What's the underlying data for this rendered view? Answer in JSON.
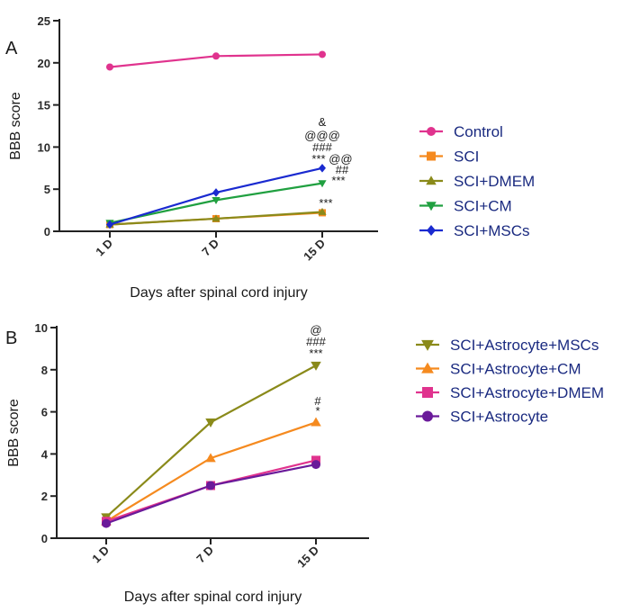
{
  "chart_data": [
    {
      "panel": "A",
      "type": "line",
      "xlabel": "Days after spinal cord injury",
      "ylabel": "BBB score",
      "ylim": [
        0,
        25
      ],
      "yticks": [
        0,
        5,
        10,
        15,
        20,
        25
      ],
      "categories": [
        "1 D",
        "7 D",
        "15 D"
      ],
      "legend_position": "right",
      "series": [
        {
          "name": "Control",
          "marker": "circle",
          "color": "#e0338e",
          "values": [
            19.5,
            20.8,
            21.0
          ]
        },
        {
          "name": "SCI",
          "marker": "square",
          "color": "#f58a1f",
          "values": [
            0.8,
            1.5,
            2.2
          ]
        },
        {
          "name": "SCI+DMEM",
          "marker": "triangle-up",
          "color": "#8a8a1a",
          "values": [
            0.8,
            1.5,
            2.3
          ]
        },
        {
          "name": "SCI+CM",
          "marker": "triangle-down",
          "color": "#20a040",
          "values": [
            1.0,
            3.7,
            5.7
          ]
        },
        {
          "name": "SCI+MSCs",
          "marker": "diamond",
          "color": "#1a2ad0",
          "values": [
            0.8,
            4.6,
            7.5
          ]
        }
      ],
      "annotations": [
        "&",
        "@@@",
        "###",
        "*** @@",
        "##",
        "***",
        "***"
      ]
    },
    {
      "panel": "B",
      "type": "line",
      "xlabel": "Days after spinal cord injury",
      "ylabel": "BBB score",
      "ylim": [
        0,
        10
      ],
      "yticks": [
        0,
        2,
        4,
        6,
        8,
        10
      ],
      "categories": [
        "1 D",
        "7 D",
        "15 D"
      ],
      "legend_position": "right",
      "series": [
        {
          "name": "SCI+Astrocyte+MSCs",
          "marker": "triangle-down",
          "color": "#8a8a1a",
          "values": [
            1.0,
            5.5,
            8.2
          ]
        },
        {
          "name": "SCI+Astrocyte+CM",
          "marker": "triangle-up",
          "color": "#f58a1f",
          "values": [
            0.8,
            3.8,
            5.5
          ]
        },
        {
          "name": "SCI+Astrocyte+DMEM",
          "marker": "square",
          "color": "#e0338e",
          "values": [
            0.8,
            2.5,
            3.7
          ]
        },
        {
          "name": "SCI+Astrocyte",
          "marker": "circle",
          "color": "#6a1a9a",
          "values": [
            0.7,
            2.5,
            3.5
          ]
        }
      ],
      "annotations": [
        "@",
        "###",
        "***",
        "#",
        "*"
      ]
    }
  ]
}
